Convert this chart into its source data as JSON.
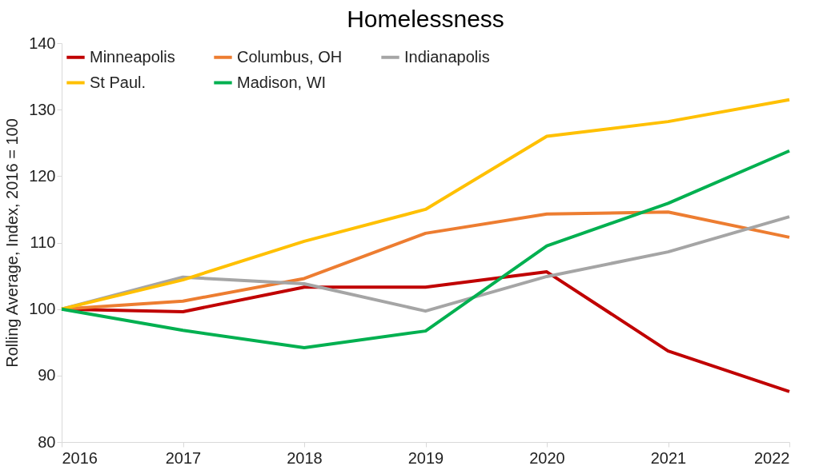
{
  "chart_data": {
    "type": "line",
    "title": "Homelessness",
    "ylabel": "Rolling Average, Index, 2016 = 100",
    "x": [
      2016,
      2017,
      2018,
      2019,
      2020,
      2021,
      2022
    ],
    "xlim": [
      2016,
      2022
    ],
    "xticks": [
      2016,
      2017,
      2018,
      2019,
      2020,
      2021,
      2022
    ],
    "ylim": [
      80,
      140
    ],
    "yticks": [
      80,
      90,
      100,
      110,
      120,
      130,
      140
    ],
    "grid": false,
    "legend": "top",
    "marker": "none",
    "line_style": "solid",
    "series": [
      {
        "name": "Minneapolis",
        "color": "#c00000",
        "values": [
          100,
          99.6,
          103.3,
          103.3,
          105.6,
          93.7,
          87.6
        ]
      },
      {
        "name": "Columbus, OH",
        "color": "#ed7d31",
        "values": [
          100,
          101.2,
          104.6,
          111.4,
          114.3,
          114.6,
          110.8
        ]
      },
      {
        "name": "Indianapolis",
        "color": "#a5a5a5",
        "values": [
          100,
          104.8,
          103.8,
          99.7,
          104.9,
          108.6,
          113.9
        ]
      },
      {
        "name": "St Paul.",
        "color": "#ffc000",
        "values": [
          100,
          104.4,
          110.2,
          115.0,
          126.0,
          128.2,
          131.5
        ]
      },
      {
        "name": "Madison, WI",
        "color": "#00b050",
        "values": [
          100,
          96.8,
          94.2,
          96.7,
          109.5,
          115.9,
          123.8
        ]
      }
    ]
  }
}
